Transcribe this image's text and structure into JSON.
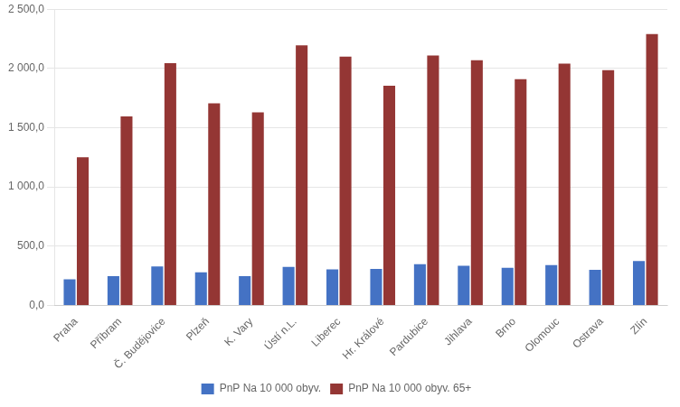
{
  "chart_data": {
    "type": "bar",
    "categories": [
      "Praha",
      "Příbram",
      "Č. Budějovice",
      "Plzeň",
      "K. Vary",
      "Ústí n.L.",
      "Liberec",
      "Hr. Králové",
      "Pardubice",
      "Jihlava",
      "Brno",
      "Olomouc",
      "Ostrava",
      "Zlín"
    ],
    "series": [
      {
        "name": "PnP Na 10 000 obyv.",
        "color": "#4472C4",
        "values": [
          220,
          248,
          330,
          280,
          248,
          325,
          305,
          308,
          348,
          335,
          318,
          340,
          300,
          375
        ]
      },
      {
        "name": "PnP Na 10 000 obyv. 65+",
        "color": "#943634",
        "values": [
          1250,
          1595,
          2045,
          1705,
          1630,
          2195,
          2100,
          1855,
          2110,
          2070,
          1910,
          2040,
          1985,
          2290
        ]
      }
    ],
    "ylim": [
      0,
      2500
    ],
    "yticks": [
      {
        "value": 0,
        "label": "0,0"
      },
      {
        "value": 500,
        "label": "500,0"
      },
      {
        "value": 1000,
        "label": "1 000,0"
      },
      {
        "value": 1500,
        "label": "1 500,0"
      },
      {
        "value": 2000,
        "label": "2 000,0"
      },
      {
        "value": 2500,
        "label": "2 500,0"
      }
    ],
    "grid": true,
    "legend": "bottom"
  }
}
